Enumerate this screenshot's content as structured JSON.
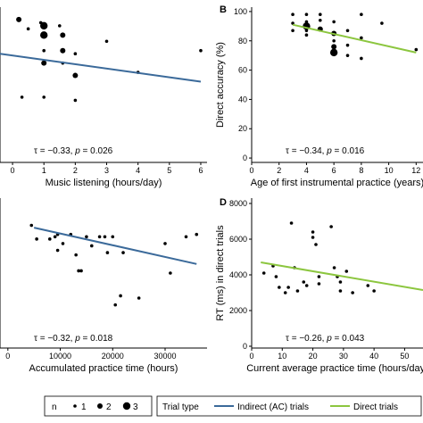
{
  "colors": {
    "indirect": "#3b6a9a",
    "direct": "#8cc63f",
    "points": "#000000"
  },
  "legend": {
    "n_title": "n",
    "n_items": [
      "1",
      "2",
      "3"
    ],
    "trial_type_title": "Trial type",
    "indirect_label": "Indirect (AC) trials",
    "direct_label": "Direct trials"
  },
  "chart_data": [
    {
      "panel": "A",
      "label": "",
      "type": "scatter",
      "xlabel": "Music listening (hours/day)",
      "ylabel": "",
      "xlim": [
        -0.4,
        6.2
      ],
      "ylim": [
        52,
        102
      ],
      "xticks": [
        0,
        1,
        2,
        3,
        4,
        5,
        6
      ],
      "yticks": [],
      "ytick_labels": [],
      "annotation": {
        "prefix": "τ = −0.33, ",
        "p_label": "p",
        "suffix": " = 0.026"
      },
      "fit": {
        "series": "indirect",
        "x": [
          -0.4,
          6.0
        ],
        "y": [
          87,
          78
        ]
      },
      "points": [
        {
          "x": 0.2,
          "y": 98,
          "n": 2
        },
        {
          "x": 0.5,
          "y": 95,
          "n": 1
        },
        {
          "x": 0.9,
          "y": 97,
          "n": 1
        },
        {
          "x": 1.0,
          "y": 96,
          "n": 3
        },
        {
          "x": 1.0,
          "y": 93,
          "n": 3
        },
        {
          "x": 1.5,
          "y": 96,
          "n": 1
        },
        {
          "x": 1.6,
          "y": 93,
          "n": 2
        },
        {
          "x": 1.0,
          "y": 88,
          "n": 1
        },
        {
          "x": 1.0,
          "y": 84,
          "n": 2
        },
        {
          "x": 1.6,
          "y": 88,
          "n": 2
        },
        {
          "x": 1.6,
          "y": 84,
          "n": 1
        },
        {
          "x": 2.0,
          "y": 80,
          "n": 2
        },
        {
          "x": 2.0,
          "y": 87,
          "n": 1
        },
        {
          "x": 3.0,
          "y": 91,
          "n": 1
        },
        {
          "x": 4.0,
          "y": 81,
          "n": 1
        },
        {
          "x": 6.0,
          "y": 88,
          "n": 1
        },
        {
          "x": 0.3,
          "y": 73,
          "n": 1
        },
        {
          "x": 1.0,
          "y": 73,
          "n": 1
        },
        {
          "x": 2.0,
          "y": 72,
          "n": 1
        }
      ]
    },
    {
      "panel": "B",
      "label": "B",
      "type": "scatter",
      "xlabel": "Age of first instrumental practice (years)",
      "ylabel": "Direct accuracy (%)",
      "xlim": [
        0,
        12.5
      ],
      "ylim": [
        -3,
        103
      ],
      "xticks": [
        0,
        2,
        4,
        6,
        8,
        10,
        12
      ],
      "yticks": [
        0,
        20,
        40,
        60,
        80,
        100
      ],
      "ytick_labels": [
        "0",
        "20",
        "40",
        "60",
        "80",
        "100"
      ],
      "annotation": {
        "prefix": "τ = −0.34, ",
        "p_label": "p",
        "suffix": " = 0.016"
      },
      "fit": {
        "series": "direct",
        "x": [
          3,
          12
        ],
        "y": [
          91,
          72
        ]
      },
      "points": [
        {
          "x": 3.0,
          "y": 98,
          "n": 1
        },
        {
          "x": 3.0,
          "y": 92,
          "n": 1
        },
        {
          "x": 3.0,
          "y": 87,
          "n": 1
        },
        {
          "x": 4.0,
          "y": 98,
          "n": 1
        },
        {
          "x": 4.0,
          "y": 93,
          "n": 1
        },
        {
          "x": 4.0,
          "y": 90,
          "n": 3
        },
        {
          "x": 4.0,
          "y": 87,
          "n": 1
        },
        {
          "x": 4.0,
          "y": 84,
          "n": 1
        },
        {
          "x": 5.0,
          "y": 98,
          "n": 1
        },
        {
          "x": 5.0,
          "y": 94,
          "n": 1
        },
        {
          "x": 5.0,
          "y": 88,
          "n": 2
        },
        {
          "x": 6.0,
          "y": 93,
          "n": 1
        },
        {
          "x": 6.0,
          "y": 85,
          "n": 2
        },
        {
          "x": 6.0,
          "y": 80,
          "n": 1
        },
        {
          "x": 6.0,
          "y": 76,
          "n": 2
        },
        {
          "x": 6.0,
          "y": 72,
          "n": 3
        },
        {
          "x": 7.0,
          "y": 87,
          "n": 1
        },
        {
          "x": 7.0,
          "y": 77,
          "n": 1
        },
        {
          "x": 7.0,
          "y": 70,
          "n": 1
        },
        {
          "x": 8.0,
          "y": 98,
          "n": 1
        },
        {
          "x": 8.0,
          "y": 82,
          "n": 1
        },
        {
          "x": 8.0,
          "y": 68,
          "n": 1
        },
        {
          "x": 9.5,
          "y": 92,
          "n": 1
        },
        {
          "x": 12.0,
          "y": 74,
          "n": 1
        }
      ]
    },
    {
      "panel": "C",
      "label": "",
      "type": "scatter",
      "xlabel": "Accumulated practice time (hours)",
      "ylabel": "",
      "xlim": [
        -1500,
        38000
      ],
      "ylim": [
        2000,
        8600
      ],
      "xticks": [
        0,
        10000,
        20000,
        30000
      ],
      "xtick_labels": [
        "0",
        "10000",
        "20000",
        "30000"
      ],
      "yticks": [],
      "ytick_labels": [],
      "annotation": {
        "prefix": "τ = −0.32, ",
        "p_label": "p",
        "suffix": " = 0.018"
      },
      "fit": {
        "series": "indirect",
        "x": [
          5000,
          36000
        ],
        "y": [
          7300,
          5700
        ]
      },
      "points": [
        {
          "x": 4500,
          "y": 7400,
          "n": 1
        },
        {
          "x": 5500,
          "y": 6800,
          "n": 1
        },
        {
          "x": 8000,
          "y": 6800,
          "n": 1
        },
        {
          "x": 9000,
          "y": 6900,
          "n": 1
        },
        {
          "x": 9500,
          "y": 7000,
          "n": 1
        },
        {
          "x": 9500,
          "y": 6300,
          "n": 1
        },
        {
          "x": 10500,
          "y": 6600,
          "n": 1
        },
        {
          "x": 12000,
          "y": 7000,
          "n": 1
        },
        {
          "x": 13000,
          "y": 6100,
          "n": 1
        },
        {
          "x": 13500,
          "y": 5400,
          "n": 1
        },
        {
          "x": 14000,
          "y": 5400,
          "n": 1
        },
        {
          "x": 15000,
          "y": 6900,
          "n": 1
        },
        {
          "x": 16000,
          "y": 6500,
          "n": 1
        },
        {
          "x": 17500,
          "y": 6900,
          "n": 1
        },
        {
          "x": 18500,
          "y": 6900,
          "n": 1
        },
        {
          "x": 19000,
          "y": 6200,
          "n": 1
        },
        {
          "x": 20000,
          "y": 6900,
          "n": 1
        },
        {
          "x": 20500,
          "y": 3900,
          "n": 1
        },
        {
          "x": 21500,
          "y": 4300,
          "n": 1
        },
        {
          "x": 22000,
          "y": 6200,
          "n": 1
        },
        {
          "x": 25000,
          "y": 4200,
          "n": 1
        },
        {
          "x": 30000,
          "y": 6600,
          "n": 1
        },
        {
          "x": 31000,
          "y": 5300,
          "n": 1
        },
        {
          "x": 34000,
          "y": 6900,
          "n": 1
        },
        {
          "x": 36000,
          "y": 7000,
          "n": 1
        }
      ]
    },
    {
      "panel": "D",
      "label": "D",
      "type": "scatter",
      "xlabel": "Current average practice time (hours/day)",
      "ylabel": "RT (ms) in direct trials",
      "xlim": [
        0,
        56
      ],
      "ylim": [
        -100,
        8300
      ],
      "xticks": [
        0,
        10,
        20,
        30,
        40,
        50
      ],
      "yticks": [
        0,
        2000,
        4000,
        6000,
        8000
      ],
      "ytick_labels": [
        "0",
        "2000",
        "4000",
        "6000",
        "8000"
      ],
      "annotation": {
        "prefix": "τ = −0.26, ",
        "p_label": "p",
        "suffix": " = 0.043"
      },
      "fit": {
        "series": "direct",
        "x": [
          3,
          56
        ],
        "y": [
          4700,
          3150
        ]
      },
      "points": [
        {
          "x": 4,
          "y": 4100,
          "n": 1
        },
        {
          "x": 7,
          "y": 4500,
          "n": 1
        },
        {
          "x": 8,
          "y": 3900,
          "n": 1
        },
        {
          "x": 9,
          "y": 3300,
          "n": 1
        },
        {
          "x": 11,
          "y": 3000,
          "n": 1
        },
        {
          "x": 12,
          "y": 3300,
          "n": 1
        },
        {
          "x": 13,
          "y": 6900,
          "n": 1
        },
        {
          "x": 14,
          "y": 4400,
          "n": 1
        },
        {
          "x": 15,
          "y": 3100,
          "n": 1
        },
        {
          "x": 17,
          "y": 3600,
          "n": 1
        },
        {
          "x": 18,
          "y": 3400,
          "n": 1
        },
        {
          "x": 20,
          "y": 6400,
          "n": 1
        },
        {
          "x": 20,
          "y": 6100,
          "n": 1
        },
        {
          "x": 21,
          "y": 5700,
          "n": 1
        },
        {
          "x": 22,
          "y": 3900,
          "n": 1
        },
        {
          "x": 22,
          "y": 3500,
          "n": 1
        },
        {
          "x": 26,
          "y": 6700,
          "n": 1
        },
        {
          "x": 27,
          "y": 4400,
          "n": 1
        },
        {
          "x": 28,
          "y": 3900,
          "n": 1
        },
        {
          "x": 29,
          "y": 3100,
          "n": 1
        },
        {
          "x": 29,
          "y": 3600,
          "n": 1
        },
        {
          "x": 31,
          "y": 4200,
          "n": 1
        },
        {
          "x": 33,
          "y": 3000,
          "n": 1
        },
        {
          "x": 38,
          "y": 3400,
          "n": 1
        },
        {
          "x": 40,
          "y": 3100,
          "n": 1
        }
      ]
    }
  ]
}
